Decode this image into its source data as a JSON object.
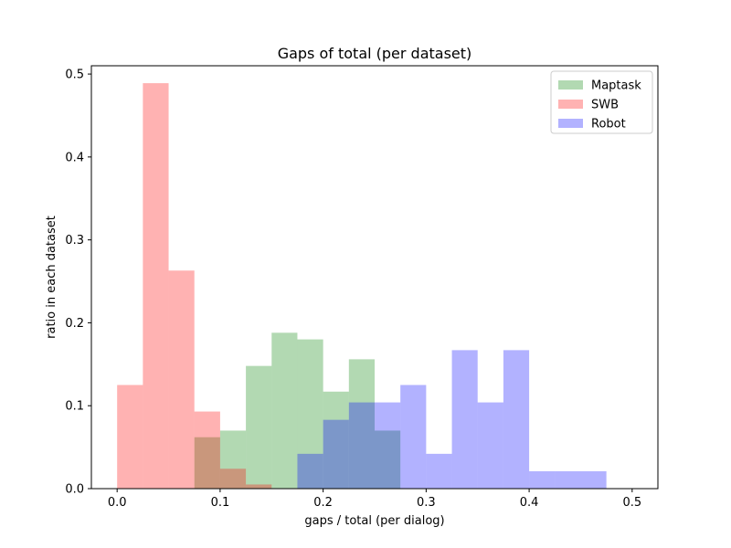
{
  "chart_data": {
    "type": "bar",
    "title": "Gaps of total (per dataset)",
    "xlabel": "gaps / total (per dialog)",
    "ylabel": "ratio in each dataset",
    "xlim": [
      -0.025,
      0.525
    ],
    "ylim": [
      0,
      0.51
    ],
    "xticks": [
      0.0,
      0.1,
      0.2,
      0.3,
      0.4,
      0.5
    ],
    "xtick_labels": [
      "0.0",
      "0.1",
      "0.2",
      "0.3",
      "0.4",
      "0.5"
    ],
    "yticks": [
      0.0,
      0.1,
      0.2,
      0.3,
      0.4,
      0.5
    ],
    "ytick_labels": [
      "0.0",
      "0.1",
      "0.2",
      "0.3",
      "0.4",
      "0.5"
    ],
    "grid": false,
    "legend_placement": "top-right",
    "bin_width": 0.025,
    "bin_edges": [
      0.0,
      0.025,
      0.05,
      0.075,
      0.1,
      0.125,
      0.15,
      0.175,
      0.2,
      0.225,
      0.25,
      0.275,
      0.3,
      0.325,
      0.35,
      0.375,
      0.4,
      0.425,
      0.45,
      0.475,
      0.5
    ],
    "series": [
      {
        "name": "Maptask",
        "color": "#008000",
        "opacity": 0.3,
        "values": [
          0,
          0,
          0,
          0.062,
          0.07,
          0.148,
          0.188,
          0.18,
          0.117,
          0.156,
          0.07,
          0,
          0,
          0,
          0,
          0,
          0,
          0,
          0,
          0
        ]
      },
      {
        "name": "SWB",
        "color": "#ff0000",
        "opacity": 0.3,
        "values": [
          0.125,
          0.489,
          0.263,
          0.093,
          0.024,
          0.005,
          0,
          0,
          0,
          0,
          0,
          0,
          0,
          0,
          0,
          0,
          0,
          0,
          0,
          0
        ]
      },
      {
        "name": "Robot",
        "color": "#0000ff",
        "opacity": 0.3,
        "values": [
          0,
          0,
          0,
          0,
          0,
          0,
          0,
          0.042,
          0.083,
          0.104,
          0.104,
          0.125,
          0.042,
          0.167,
          0.104,
          0.167,
          0.021,
          0.021,
          0.021,
          0
        ]
      }
    ]
  }
}
